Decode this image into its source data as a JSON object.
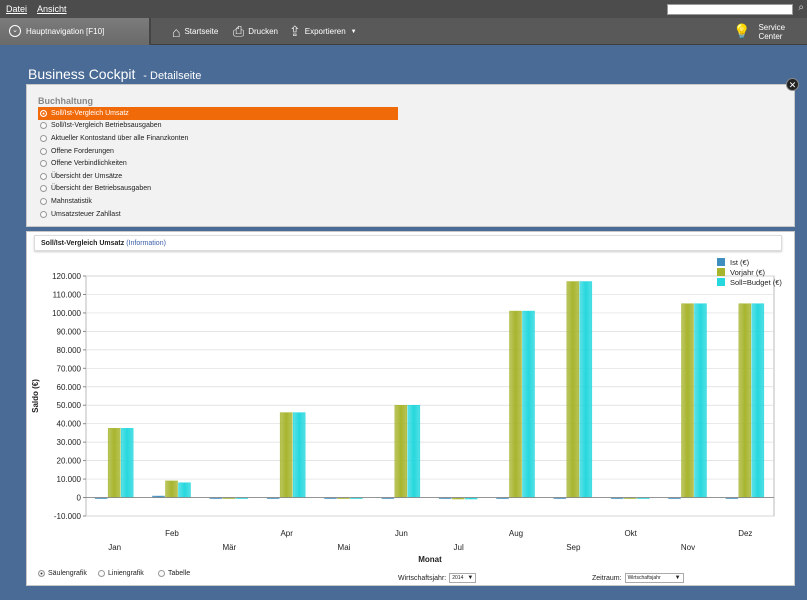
{
  "menu": {
    "items": [
      "Datei",
      "Ansicht"
    ]
  },
  "toolbar": {
    "hauptnav": "Hauptnavigation [F10]",
    "startseite": "Startseite",
    "drucken": "Drucken",
    "exportieren": "Exportieren",
    "service": "Service Center"
  },
  "page": {
    "title": "Business Cockpit",
    "subtitle": "- Detailseite"
  },
  "section": {
    "heading": "Buchhaltung",
    "items": [
      "Soll/Ist-Vergleich Umsatz",
      "Soll/Ist-Vergleich Betriebsausgaben",
      "Aktueller Kontostand über alle Finanzkonten",
      "Offene Forderungen",
      "Offene Verbindlichkeiten",
      "Übersicht der Umsätze",
      "Übersicht der Betriebsausgaben",
      "Mahnstatistik",
      "Umsatzsteuer Zahllast"
    ],
    "selected_index": 0
  },
  "chart_panel": {
    "title": "Soll/Ist-Vergleich Umsatz",
    "info": "(Information)"
  },
  "chart_data": {
    "type": "bar",
    "categories": [
      "Jan",
      "Feb",
      "Mär",
      "Apr",
      "Mai",
      "Jun",
      "Jul",
      "Aug",
      "Sep",
      "Okt",
      "Nov",
      "Dez"
    ],
    "series": [
      {
        "name": "Ist (€)",
        "color": "#3e8fc0",
        "values": [
          0,
          800,
          0,
          0,
          0,
          0,
          0,
          0,
          0,
          0,
          0,
          0
        ]
      },
      {
        "name": "Vorjahr (€)",
        "color": "#a7b52e",
        "values": [
          37500,
          9000,
          0,
          46000,
          0,
          50000,
          -800,
          101000,
          117000,
          0,
          105000,
          105000
        ]
      },
      {
        "name": "Soll=Budget (€)",
        "color": "#26d8de",
        "values": [
          37500,
          8000,
          0,
          46000,
          0,
          50000,
          -800,
          101000,
          117000,
          0,
          105000,
          105000
        ]
      }
    ],
    "xlabel": "Monat",
    "ylabel": "Saldo (€)",
    "ylim": [
      -10000,
      120000
    ],
    "yticks": [
      -10000,
      0,
      10000,
      20000,
      30000,
      40000,
      50000,
      60000,
      70000,
      80000,
      90000,
      100000,
      110000,
      120000
    ],
    "ytick_labels": [
      "-10.000",
      "0",
      "10.000",
      "20.000",
      "30.000",
      "40.000",
      "50.000",
      "60.000",
      "70.000",
      "80.000",
      "90.000",
      "100.000",
      "110.000",
      "120.000"
    ],
    "grid": true,
    "legend_position": "top-right"
  },
  "footer": {
    "chart_types": [
      "Säulengrafik",
      "Liniengrafik",
      "Tabelle"
    ],
    "selected_chart_type": 0,
    "fiscal_year_label": "Wirtschaftsjahr:",
    "fiscal_year_value": "2014",
    "period_label": "Zeitraum:",
    "period_value": "Wirtschaftsjahr"
  }
}
